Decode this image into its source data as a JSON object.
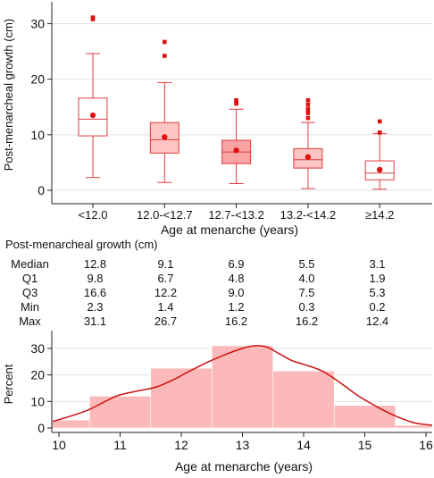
{
  "chart_data": [
    {
      "type": "box",
      "ylabel": "Post-menarcheal growth (cm)",
      "xlabel": "Age at menarche (years)",
      "ylim": [
        0,
        32
      ],
      "yticks": [
        0,
        10,
        20,
        30
      ],
      "grid": true,
      "categories": [
        "<12.0",
        "12.0-<12.7",
        "12.7-<13.2",
        "13.2-<14.2",
        "≥14.2"
      ],
      "fill_colors": [
        "#ffffff",
        "#fdc4c4",
        "#f9a3a3",
        "#fdc4c4",
        "#ffffff"
      ],
      "stroke_color": "#e23b3b",
      "marker_color": "#dd1111",
      "boxes": [
        {
          "median": 12.8,
          "q1": 9.8,
          "q3": 16.6,
          "whisker_low": 2.3,
          "whisker_high": 24.6,
          "mean": 13.5,
          "outliers": [
            30.8,
            31.1
          ]
        },
        {
          "median": 9.1,
          "q1": 6.7,
          "q3": 12.2,
          "whisker_low": 1.4,
          "whisker_high": 19.4,
          "mean": 9.6,
          "outliers": [
            24.2,
            26.7
          ]
        },
        {
          "median": 6.9,
          "q1": 4.8,
          "q3": 9.0,
          "whisker_low": 1.2,
          "whisker_high": 14.6,
          "mean": 7.2,
          "outliers": [
            15.6,
            16.0,
            16.2
          ]
        },
        {
          "median": 5.5,
          "q1": 4.0,
          "q3": 7.5,
          "whisker_low": 0.3,
          "whisker_high": 12.2,
          "mean": 6.0,
          "outliers": [
            13.0,
            13.9,
            14.6,
            15.4,
            16.2
          ]
        },
        {
          "median": 3.1,
          "q1": 1.9,
          "q3": 5.3,
          "whisker_low": 0.2,
          "whisker_high": 10.2,
          "mean": 3.7,
          "outliers": [
            10.4,
            12.4
          ]
        }
      ]
    },
    {
      "type": "histogram",
      "ylabel": "Percent",
      "xlabel": "Age at menarche (years)",
      "xlim": [
        9.9,
        16.1
      ],
      "ylim": [
        0,
        32
      ],
      "xticks": [
        10,
        11,
        12,
        13,
        14,
        15,
        16
      ],
      "yticks": [
        0,
        10,
        20,
        30
      ],
      "grid": true,
      "bar_color": "#fbb9b9",
      "curve_color": "#cc1111",
      "bins": [
        {
          "x0": 9.5,
          "x1": 10.5,
          "value": 3.0
        },
        {
          "x0": 10.5,
          "x1": 11.5,
          "value": 12.0
        },
        {
          "x0": 11.5,
          "x1": 12.5,
          "value": 22.5
        },
        {
          "x0": 12.5,
          "x1": 13.5,
          "value": 31.0
        },
        {
          "x0": 13.5,
          "x1": 14.5,
          "value": 21.5
        },
        {
          "x0": 14.5,
          "x1": 15.5,
          "value": 8.5
        },
        {
          "x0": 15.5,
          "x1": 16.5,
          "value": 1.0
        }
      ],
      "density_curve": {
        "x": [
          9.9,
          10.2,
          10.5,
          10.8,
          11.0,
          11.3,
          11.6,
          11.9,
          12.1,
          12.4,
          12.7,
          13.0,
          13.2,
          13.4,
          13.6,
          13.8,
          14.0,
          14.3,
          14.6,
          14.9,
          15.2,
          15.5,
          15.8,
          16.1
        ],
        "y": [
          2.5,
          4.5,
          7.0,
          10.5,
          12.5,
          14.0,
          15.5,
          18.5,
          21.0,
          24.5,
          27.5,
          30.0,
          31.0,
          30.5,
          28.0,
          25.5,
          24.0,
          21.5,
          17.0,
          12.0,
          8.0,
          4.5,
          2.0,
          1.0
        ]
      }
    }
  ],
  "stats_table": {
    "title": "Post-menarcheal growth (cm)",
    "rows": [
      {
        "label": "Median",
        "values": [
          "12.8",
          "9.1",
          "6.9",
          "5.5",
          "3.1"
        ]
      },
      {
        "label": "Q1",
        "values": [
          "9.8",
          "6.7",
          "4.8",
          "4.0",
          "1.9"
        ]
      },
      {
        "label": "Q3",
        "values": [
          "16.6",
          "12.2",
          "9.0",
          "7.5",
          "5.3"
        ]
      },
      {
        "label": "Min",
        "values": [
          "2.3",
          "1.4",
          "1.2",
          "0.3",
          "0.2"
        ]
      },
      {
        "label": "Max",
        "values": [
          "31.1",
          "26.7",
          "16.2",
          "16.2",
          "12.4"
        ]
      }
    ]
  }
}
